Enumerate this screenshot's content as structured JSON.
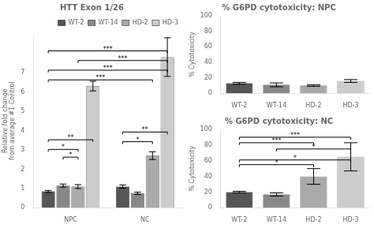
{
  "chart_data": [
    {
      "type": "bar",
      "title": "HTT Exon 1/26",
      "ylabel": "Relative fold change from average #1 Control",
      "categories": [
        "NPC",
        "NC"
      ],
      "series": [
        {
          "name": "WT-2",
          "color": "#555555",
          "values": [
            0.85,
            1.1
          ],
          "errors": [
            0.05,
            0.08
          ]
        },
        {
          "name": "WT-14",
          "color": "#888888",
          "values": [
            1.15,
            0.75
          ],
          "errors": [
            0.08,
            0.06
          ]
        },
        {
          "name": "HD-2",
          "color": "#aaaaaa",
          "values": [
            1.1,
            2.7
          ],
          "errors": [
            0.1,
            0.2
          ]
        },
        {
          "name": "HD-3",
          "color": "#cccccc",
          "values": [
            6.3,
            7.8
          ],
          "errors": [
            0.25,
            1.0
          ]
        }
      ],
      "ylim": [
        0,
        9
      ],
      "yticks": [
        0,
        1,
        2,
        3,
        4,
        5,
        6,
        7
      ],
      "grid": false,
      "legend": "upper right",
      "annotations": [
        {
          "text": "*",
          "from": {
            "category": "NPC",
            "series": "WT-2"
          },
          "to": {
            "category": "NPC",
            "series": "HD-2"
          },
          "y": 2.9
        },
        {
          "text": "**",
          "from": {
            "category": "NPC",
            "series": "WT-2"
          },
          "to": {
            "category": "NPC",
            "series": "HD-3"
          },
          "y": 3.4
        },
        {
          "text": "*",
          "from": {
            "category": "NPC",
            "series": "WT-14"
          },
          "to": {
            "category": "NPC",
            "series": "HD-2"
          },
          "y": 2.5
        },
        {
          "text": "*",
          "from": {
            "category": "NC",
            "series": "WT-2"
          },
          "to": {
            "category": "NC",
            "series": "HD-2"
          },
          "y": 3.3
        },
        {
          "text": "**",
          "from": {
            "category": "NC",
            "series": "WT-2"
          },
          "to": {
            "category": "NC",
            "series": "HD-3"
          },
          "y": 3.8
        },
        {
          "text": "***",
          "from": {
            "category": "NPC",
            "series": "WT-2"
          },
          "to": {
            "category": "NC",
            "series": "HD-2"
          },
          "y": 6.5
        },
        {
          "text": "***",
          "from": {
            "category": "NPC",
            "series": "WT-2"
          },
          "to": {
            "category": "NC",
            "series": "HD-3"
          },
          "y": 7.0
        },
        {
          "text": "***",
          "from": {
            "category": "NPC",
            "series": "HD-2"
          },
          "to": {
            "category": "NC",
            "series": "HD-3"
          },
          "y": 7.5
        },
        {
          "text": "***",
          "from": {
            "category": "NPC",
            "series": "WT-2"
          },
          "to": {
            "category": "NC",
            "series": "HD-3"
          },
          "y": 8.0
        }
      ]
    },
    {
      "type": "bar",
      "title": "% G6PD cytotoxicity: NPC",
      "ylabel": "% Cytotoxicity",
      "categories": [
        "WT-2",
        "WT-14",
        "HD-2",
        "HD-3"
      ],
      "values": [
        13,
        11,
        10,
        16
      ],
      "errors": [
        1.2,
        2.5,
        1.0,
        1.8
      ],
      "colors": [
        "#555555",
        "#888888",
        "#aaaaaa",
        "#cccccc"
      ],
      "ylim": [
        0,
        100
      ],
      "yticks": [
        0,
        20,
        40,
        60,
        80,
        100
      ],
      "grid": false
    },
    {
      "type": "bar",
      "title": "% G6PD cytotoxicity: NC",
      "ylabel": "% Cytotoxicity",
      "categories": [
        "WT-2",
        "WT-14",
        "HD-2",
        "HD-3"
      ],
      "values": [
        20,
        17,
        40,
        65
      ],
      "errors": [
        1.0,
        2.0,
        10.0,
        18.0
      ],
      "colors": [
        "#555555",
        "#888888",
        "#aaaaaa",
        "#cccccc"
      ],
      "ylim": [
        0,
        100
      ],
      "yticks": [
        0,
        20,
        40,
        60,
        80,
        100
      ],
      "grid": false,
      "annotations": [
        {
          "text": "*",
          "from": "WT-2",
          "to": "HD-2",
          "y": 52
        },
        {
          "text": "*",
          "from": "WT-2",
          "to": "HD-3",
          "y": 58
        },
        {
          "text": "*",
          "from": "WT-14",
          "to": "HD-3",
          "y": 72
        },
        {
          "text": "***",
          "from": "WT-2",
          "to": "HD-2",
          "y": 80
        },
        {
          "text": "***",
          "from": "WT-2",
          "to": "HD-3",
          "y": 87
        }
      ]
    }
  ]
}
